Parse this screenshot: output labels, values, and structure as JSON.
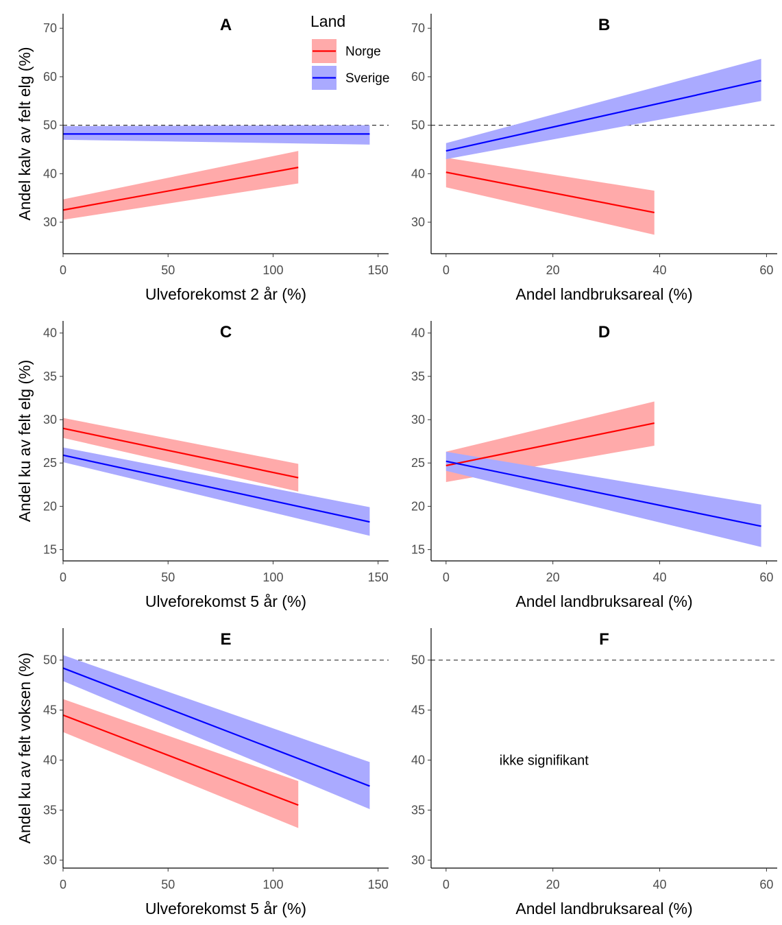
{
  "legend": {
    "title": "Land",
    "items": [
      {
        "label": "Norge",
        "color": "#ff0000",
        "band": "#ffaaaa"
      },
      {
        "label": "Sverige",
        "color": "#0000ff",
        "band": "#aaaaff"
      }
    ]
  },
  "chart_data": [
    {
      "panel": "A",
      "type": "line",
      "title": "A",
      "xlabel": "Ulveforekomst 2 år (%)",
      "ylabel": "Andel kalv av felt elg (%)",
      "xlim": [
        0,
        155
      ],
      "ylim": [
        23.5,
        73
      ],
      "xticks": [
        0,
        50,
        100,
        150
      ],
      "yticks": [
        30,
        40,
        50,
        60,
        70
      ],
      "reference_line": 50,
      "series": [
        {
          "name": "Norge",
          "x": [
            0,
            112
          ],
          "y": [
            32.5,
            41.3
          ],
          "lower": [
            30.5,
            38.0
          ],
          "upper": [
            34.7,
            44.7
          ]
        },
        {
          "name": "Sverige",
          "x": [
            0,
            146
          ],
          "y": [
            48.2,
            48.2
          ],
          "lower": [
            47.0,
            46.0
          ],
          "upper": [
            49.8,
            50.0
          ]
        }
      ]
    },
    {
      "panel": "B",
      "type": "line",
      "title": "B",
      "xlabel": "Andel landbruksareal (%)",
      "ylabel": "",
      "xlim": [
        -2.8,
        62
      ],
      "ylim": [
        23.5,
        73
      ],
      "xticks": [
        0,
        20,
        40,
        60
      ],
      "yticks": [
        30,
        40,
        50,
        60,
        70
      ],
      "reference_line": 50,
      "series": [
        {
          "name": "Norge",
          "x": [
            0,
            39
          ],
          "y": [
            40.3,
            32.0
          ],
          "lower": [
            37.2,
            27.4
          ],
          "upper": [
            43.3,
            36.5
          ]
        },
        {
          "name": "Sverige",
          "x": [
            0,
            59
          ],
          "y": [
            44.7,
            59.2
          ],
          "lower": [
            43.0,
            55.0
          ],
          "upper": [
            46.3,
            63.7
          ]
        }
      ]
    },
    {
      "panel": "C",
      "type": "line",
      "title": "C",
      "xlabel": "Ulveforekomst 5 år (%)",
      "ylabel": "Andel ku av felt elg (%)",
      "xlim": [
        0,
        155
      ],
      "ylim": [
        13.7,
        41.4
      ],
      "xticks": [
        0,
        50,
        100,
        150
      ],
      "yticks": [
        15,
        20,
        25,
        30,
        35,
        40
      ],
      "series": [
        {
          "name": "Norge",
          "x": [
            0,
            112
          ],
          "y": [
            29.0,
            23.3
          ],
          "lower": [
            27.9,
            21.7
          ],
          "upper": [
            30.2,
            24.9
          ]
        },
        {
          "name": "Sverige",
          "x": [
            0,
            146
          ],
          "y": [
            25.9,
            18.2
          ],
          "lower": [
            25.1,
            16.6
          ],
          "upper": [
            26.8,
            19.9
          ]
        }
      ]
    },
    {
      "panel": "D",
      "type": "line",
      "title": "D",
      "xlabel": "Andel landbruksareal (%)",
      "ylabel": "",
      "xlim": [
        -2.8,
        62
      ],
      "ylim": [
        13.7,
        41.4
      ],
      "xticks": [
        0,
        20,
        40,
        60
      ],
      "yticks": [
        15,
        20,
        25,
        30,
        35,
        40
      ],
      "series": [
        {
          "name": "Norge",
          "x": [
            0,
            39
          ],
          "y": [
            24.7,
            29.6
          ],
          "lower": [
            22.8,
            27.0
          ],
          "upper": [
            26.3,
            32.1
          ]
        },
        {
          "name": "Sverige",
          "x": [
            0,
            59
          ],
          "y": [
            25.2,
            17.7
          ],
          "lower": [
            24.1,
            15.3
          ],
          "upper": [
            26.3,
            20.2
          ]
        }
      ]
    },
    {
      "panel": "E",
      "type": "line",
      "title": "E",
      "xlabel": "Ulveforekomst 5 år (%)",
      "ylabel": "Andel ku av felt voksen (%)",
      "xlim": [
        0,
        155
      ],
      "ylim": [
        29.2,
        53.2
      ],
      "xticks": [
        0,
        50,
        100,
        150
      ],
      "yticks": [
        30,
        35,
        40,
        45,
        50
      ],
      "reference_line": 50,
      "series": [
        {
          "name": "Norge",
          "x": [
            0,
            112
          ],
          "y": [
            44.5,
            35.5
          ],
          "lower": [
            42.8,
            33.2
          ],
          "upper": [
            46.1,
            37.9
          ]
        },
        {
          "name": "Sverige",
          "x": [
            0,
            146
          ],
          "y": [
            49.2,
            37.4
          ],
          "lower": [
            47.9,
            35.1
          ],
          "upper": [
            50.5,
            39.8
          ]
        }
      ]
    },
    {
      "panel": "F",
      "type": "line",
      "title": "F",
      "xlabel": "Andel landbruksareal (%)",
      "ylabel": "",
      "xlim": [
        -2.8,
        62
      ],
      "ylim": [
        29.2,
        53.2
      ],
      "xticks": [
        0,
        20,
        40,
        60
      ],
      "yticks": [
        30,
        35,
        40,
        45,
        50
      ],
      "reference_line": 50,
      "annotation": "ikke signifikant",
      "annotation_x": 10,
      "annotation_y": 40,
      "series": []
    }
  ]
}
